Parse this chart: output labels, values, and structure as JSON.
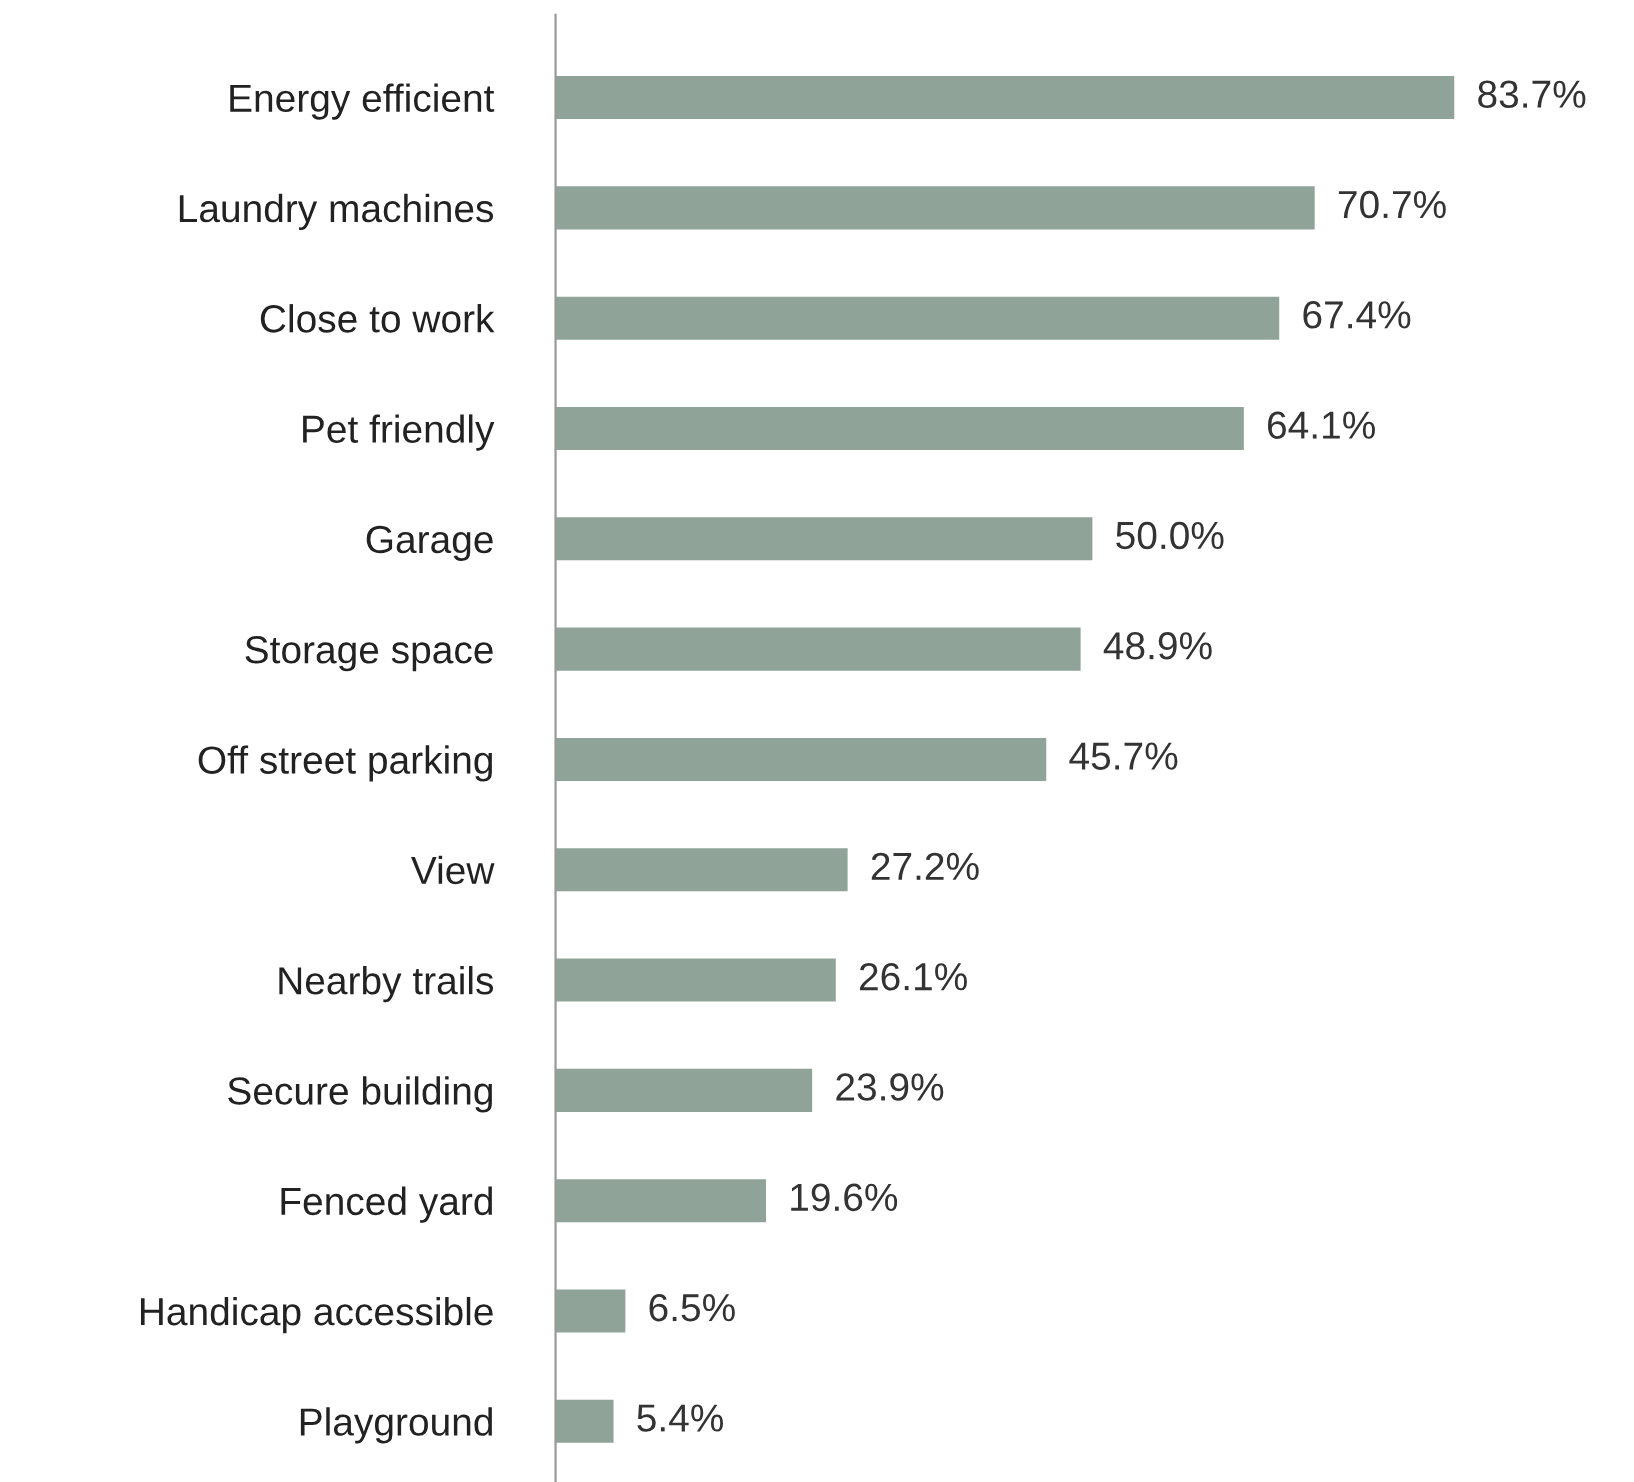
{
  "chart_data": {
    "type": "bar",
    "orientation": "horizontal",
    "categories": [
      "Energy efficient",
      "Laundry machines",
      "Close to work",
      "Pet friendly",
      "Garage",
      "Storage space",
      "Off street parking",
      "View",
      "Nearby trails",
      "Secure building",
      "Fenced yard",
      "Handicap accessible",
      "Playground"
    ],
    "values": [
      83.7,
      70.7,
      67.4,
      64.1,
      50.0,
      48.9,
      45.7,
      27.2,
      26.1,
      23.9,
      19.6,
      6.5,
      5.4
    ],
    "value_labels": [
      "83.7%",
      "70.7%",
      "67.4%",
      "64.1%",
      "50.0%",
      "48.9%",
      "45.7%",
      "27.2%",
      "26.1%",
      "23.9%",
      "19.6%",
      "6.5%",
      "5.4%"
    ],
    "color": "#8fa398",
    "grid": false,
    "legend": false
  }
}
